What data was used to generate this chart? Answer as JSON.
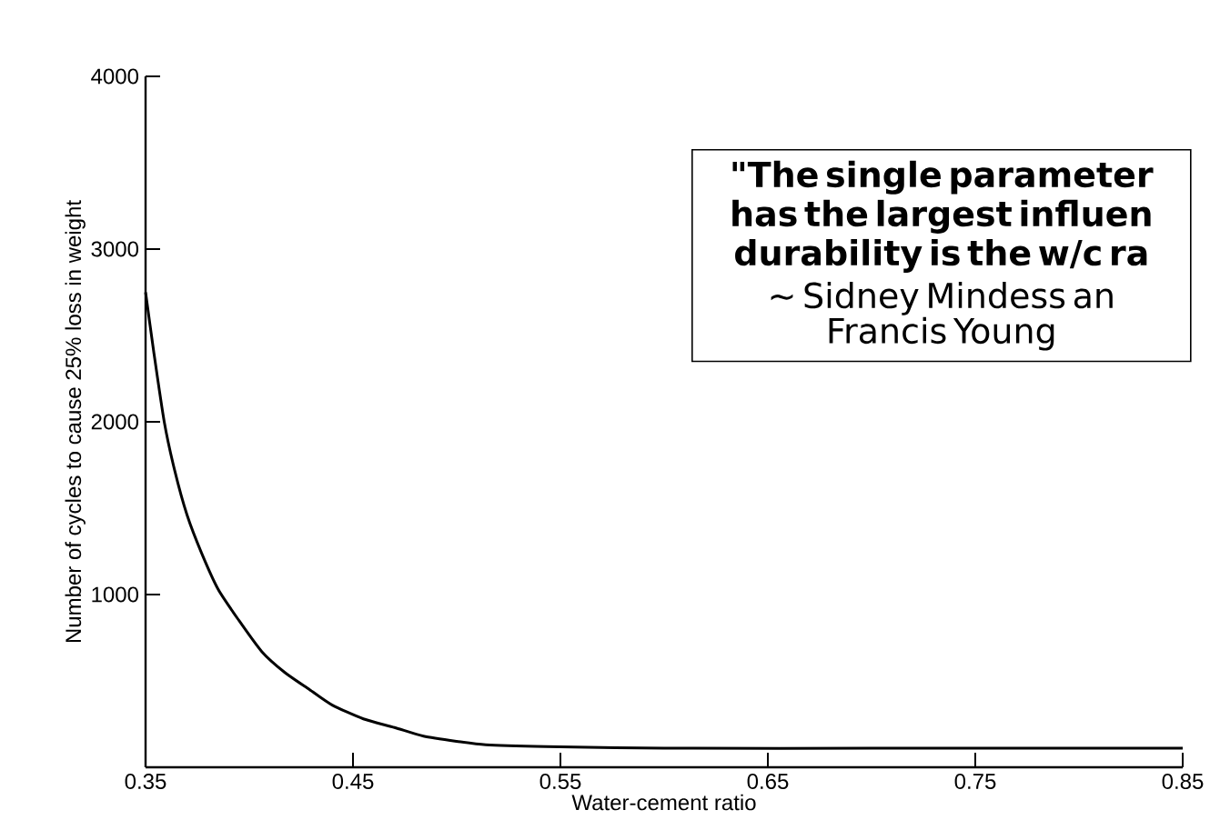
{
  "chart_data": {
    "type": "line",
    "xlabel": "Water-cement ratio",
    "ylabel": "Number of cycles to cause 25% loss in weight",
    "x": [
      0.35,
      0.354,
      0.359,
      0.364,
      0.37,
      0.377,
      0.385,
      0.395,
      0.406,
      0.417,
      0.429,
      0.44,
      0.455,
      0.47,
      0.484,
      0.5,
      0.514,
      0.543,
      0.6,
      0.7,
      0.85
    ],
    "series": [
      {
        "color": "#000000",
        "values": [
          2750,
          2400,
          2000,
          1720,
          1460,
          1240,
          1030,
          850,
          670,
          550,
          450,
          360,
          280,
          230,
          180,
          150,
          130,
          120,
          110,
          110,
          110
        ]
      }
    ],
    "xlim": [
      0.35,
      0.85
    ],
    "xticks": [
      0.35,
      0.45,
      0.55,
      0.65,
      0.75,
      0.85
    ],
    "ylim": [
      0,
      4000
    ],
    "yticks": [
      1000,
      2000,
      3000,
      4000
    ],
    "marker": "none",
    "line_style": "solid",
    "grid": false,
    "annotations": [
      "\"The single parameter",
      "has the largest influen",
      "durability is the w/c ra",
      "~ Sidney Mindess an",
      "Francis Young"
    ]
  }
}
